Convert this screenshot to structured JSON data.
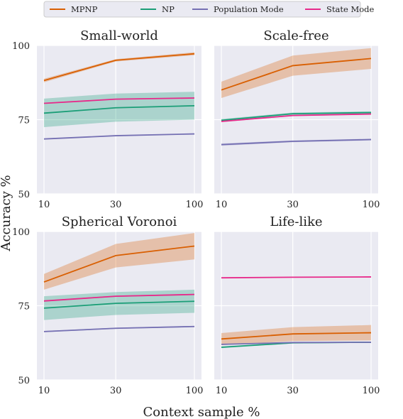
{
  "chart_data": {
    "type": "line",
    "x": [
      10,
      30,
      100
    ],
    "xlabel": "Context sample %",
    "ylabel": "Accuracy %",
    "ylim": [
      50,
      100
    ],
    "xticks": [
      "10",
      "30",
      "100"
    ],
    "yticks": [
      "50",
      "75",
      "100"
    ],
    "grid": true,
    "legend": {
      "placement": "top-center",
      "entries": [
        "MPNP",
        "NP",
        "Population Mode",
        "State Mode"
      ]
    },
    "colors": {
      "MPNP": "#d95f02",
      "NP": "#1b9e77",
      "Population Mode": "#7570b3",
      "State Mode": "#e7298a"
    },
    "panels": [
      {
        "title": "Small-world",
        "series": [
          {
            "name": "MPNP",
            "values": [
              88.2,
              95.0,
              97.2
            ],
            "lower": [
              87.6,
              94.6,
              96.7
            ],
            "upper": [
              88.8,
              95.4,
              97.7
            ]
          },
          {
            "name": "NP",
            "values": [
              77.2,
              79.0,
              79.7
            ],
            "lower": [
              72.5,
              74.3,
              75.0
            ],
            "upper": [
              82.1,
              83.8,
              84.4
            ]
          },
          {
            "name": "Population Mode",
            "values": [
              68.5,
              69.6,
              70.2
            ],
            "lower": [
              68.4,
              69.5,
              70.1
            ],
            "upper": [
              68.6,
              69.7,
              70.3
            ]
          },
          {
            "name": "State Mode",
            "values": [
              80.5,
              81.9,
              82.3
            ],
            "lower": [
              80.4,
              81.8,
              82.2
            ],
            "upper": [
              80.6,
              82.0,
              82.4
            ]
          }
        ]
      },
      {
        "title": "Scale-free",
        "series": [
          {
            "name": "MPNP",
            "values": [
              85.0,
              93.2,
              95.6
            ],
            "lower": [
              82.3,
              89.8,
              92.1
            ],
            "upper": [
              87.8,
              96.6,
              99.1
            ]
          },
          {
            "name": "NP",
            "values": [
              74.8,
              77.0,
              77.4
            ],
            "lower": [
              74.4,
              76.6,
              77.0
            ],
            "upper": [
              75.2,
              77.4,
              77.8
            ]
          },
          {
            "name": "Population Mode",
            "values": [
              66.6,
              67.7,
              68.3
            ],
            "lower": [
              66.2,
              67.4,
              68.0
            ],
            "upper": [
              67.0,
              68.0,
              68.6
            ]
          },
          {
            "name": "State Mode",
            "values": [
              74.4,
              76.4,
              76.9
            ],
            "lower": [
              74.2,
              76.2,
              76.7
            ],
            "upper": [
              74.6,
              76.6,
              77.1
            ]
          }
        ]
      },
      {
        "title": "Spherical Voronoi",
        "series": [
          {
            "name": "MPNP",
            "values": [
              83.0,
              91.9,
              95.1
            ],
            "lower": [
              80.4,
              87.9,
              90.6
            ],
            "upper": [
              85.7,
              95.8,
              99.5
            ]
          },
          {
            "name": "NP",
            "values": [
              74.2,
              75.8,
              76.5
            ],
            "lower": [
              70.2,
              71.9,
              72.6
            ],
            "upper": [
              78.2,
              79.6,
              80.4
            ]
          },
          {
            "name": "Population Mode",
            "values": [
              66.3,
              67.4,
              68.0
            ],
            "lower": [
              66.1,
              67.2,
              67.8
            ],
            "upper": [
              66.5,
              67.6,
              68.2
            ]
          },
          {
            "name": "State Mode",
            "values": [
              76.6,
              78.2,
              78.8
            ],
            "lower": [
              76.4,
              78.0,
              78.6
            ],
            "upper": [
              76.8,
              78.4,
              79.0
            ]
          }
        ]
      },
      {
        "title": "Life-like",
        "series": [
          {
            "name": "MPNP",
            "values": [
              63.8,
              65.5,
              65.9
            ],
            "lower": [
              61.7,
              63.1,
              63.3
            ],
            "upper": [
              65.8,
              67.8,
              68.5
            ]
          },
          {
            "name": "NP",
            "values": [
              61.0,
              62.5,
              62.7
            ],
            "lower": [
              60.7,
              62.3,
              62.5
            ],
            "upper": [
              61.3,
              62.7,
              62.9
            ]
          },
          {
            "name": "Population Mode",
            "values": [
              62.0,
              62.6,
              62.7
            ],
            "lower": [
              61.9,
              62.5,
              62.6
            ],
            "upper": [
              62.1,
              62.7,
              62.8
            ]
          },
          {
            "name": "State Mode",
            "values": [
              84.4,
              84.6,
              84.7
            ],
            "lower": [
              84.3,
              84.5,
              84.6
            ],
            "upper": [
              84.5,
              84.7,
              84.8
            ]
          }
        ]
      }
    ]
  }
}
